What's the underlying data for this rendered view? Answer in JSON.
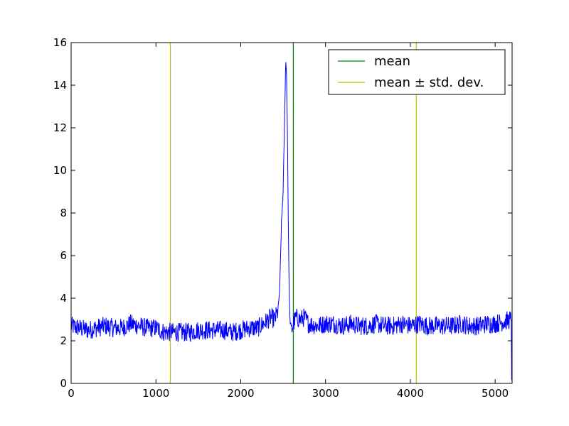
{
  "chart_data": {
    "type": "line",
    "title": "",
    "xlabel": "",
    "ylabel": "",
    "xlim": [
      0,
      5200
    ],
    "ylim": [
      0,
      16
    ],
    "x_ticks": [
      0,
      1000,
      2000,
      3000,
      4000,
      5000
    ],
    "y_ticks": [
      0,
      2,
      4,
      6,
      8,
      10,
      12,
      14,
      16
    ],
    "x_tick_labels": [
      "0",
      "1000",
      "2000",
      "3000",
      "4000",
      "5000"
    ],
    "y_tick_labels": [
      "0",
      "2",
      "4",
      "6",
      "8",
      "10",
      "12",
      "14",
      "16"
    ],
    "grid": false,
    "legend_position": "top-right",
    "legend": [
      {
        "label": "mean",
        "color": "#008000"
      },
      {
        "label": "mean ± std. dev.",
        "color": "#bfbf00"
      }
    ],
    "signal": {
      "color": "#0000ff",
      "x": [
        0,
        100,
        200,
        300,
        400,
        500,
        600,
        700,
        800,
        900,
        1000,
        1100,
        1200,
        1300,
        1400,
        1500,
        1600,
        1700,
        1800,
        1900,
        2000,
        2100,
        2200,
        2300,
        2350,
        2400,
        2440,
        2460,
        2480,
        2500,
        2520,
        2530,
        2540,
        2550,
        2560,
        2570,
        2580,
        2600,
        2620,
        2650,
        2700,
        2750,
        2800,
        2900,
        3000,
        3100,
        3200,
        3300,
        3400,
        3500,
        3600,
        3700,
        3800,
        3900,
        4000,
        4100,
        4200,
        4300,
        4400,
        4500,
        4600,
        4700,
        4800,
        4900,
        5000,
        5100,
        5190,
        5195,
        5200
      ],
      "y": [
        2.7,
        2.6,
        2.5,
        2.6,
        2.7,
        2.6,
        2.6,
        2.8,
        2.7,
        2.6,
        2.6,
        2.4,
        2.4,
        2.4,
        2.4,
        2.5,
        2.5,
        2.5,
        2.5,
        2.4,
        2.5,
        2.6,
        2.6,
        2.9,
        3.1,
        3.0,
        3.4,
        4.5,
        7.5,
        9.0,
        13.0,
        15.2,
        14.5,
        12.0,
        8.0,
        4.5,
        3.0,
        2.5,
        2.8,
        3.1,
        3.0,
        3.1,
        2.8,
        2.7,
        2.8,
        2.8,
        2.7,
        2.8,
        2.7,
        2.7,
        2.8,
        2.7,
        2.7,
        2.8,
        2.7,
        2.8,
        2.7,
        2.7,
        2.7,
        2.7,
        2.8,
        2.7,
        2.7,
        2.8,
        2.8,
        2.9,
        3.0,
        0.2,
        0.1
      ]
    },
    "vertical_lines": [
      {
        "name": "mean",
        "x": 2620,
        "color": "#008000"
      },
      {
        "name": "mean - std. dev.",
        "x": 1170,
        "color": "#bfbf00"
      },
      {
        "name": "mean + std. dev.",
        "x": 4070,
        "color": "#bfbf00"
      }
    ]
  }
}
